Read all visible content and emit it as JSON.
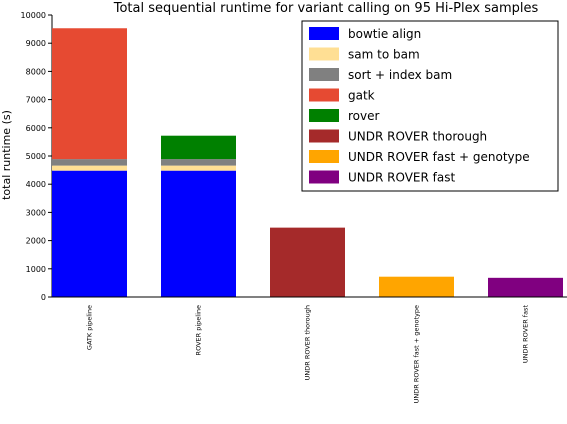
{
  "chart_data": {
    "type": "bar",
    "stacked": true,
    "title": "Total sequential runtime for variant calling on 95 Hi-Plex samples",
    "xlabel": "",
    "ylabel": "total runtime (s)",
    "ylim": [
      0,
      10000
    ],
    "yticks": [
      0,
      1000,
      2000,
      3000,
      4000,
      5000,
      6000,
      7000,
      8000,
      9000,
      10000
    ],
    "grid": false,
    "legend_position": "top-right",
    "categories": [
      "GATK pipeline",
      "ROVER pipeline",
      "UNDR ROVER thorough",
      "UNDR ROVER fast + genotype",
      "UNDR ROVER fast"
    ],
    "series": [
      {
        "name": "bowtie align",
        "color": "#0000ff",
        "values": [
          4480,
          4480,
          0,
          0,
          0
        ]
      },
      {
        "name": "sam to bam",
        "color": "#ffdf94",
        "values": [
          180,
          180,
          0,
          0,
          0
        ]
      },
      {
        "name": "sort + index bam",
        "color": "#808080",
        "values": [
          230,
          230,
          0,
          0,
          0
        ]
      },
      {
        "name": "gatk",
        "color": "#e64a32",
        "values": [
          4640,
          0,
          0,
          0,
          0
        ]
      },
      {
        "name": "rover",
        "color": "#008000",
        "values": [
          0,
          830,
          0,
          0,
          0
        ]
      },
      {
        "name": "UNDR ROVER thorough",
        "color": "#a52a2a",
        "values": [
          0,
          0,
          2460,
          0,
          0
        ]
      },
      {
        "name": "UNDR ROVER fast + genotype",
        "color": "#ffa500",
        "values": [
          0,
          0,
          0,
          720,
          0
        ]
      },
      {
        "name": "UNDR ROVER fast",
        "color": "#800080",
        "values": [
          0,
          0,
          0,
          0,
          680
        ]
      }
    ]
  }
}
